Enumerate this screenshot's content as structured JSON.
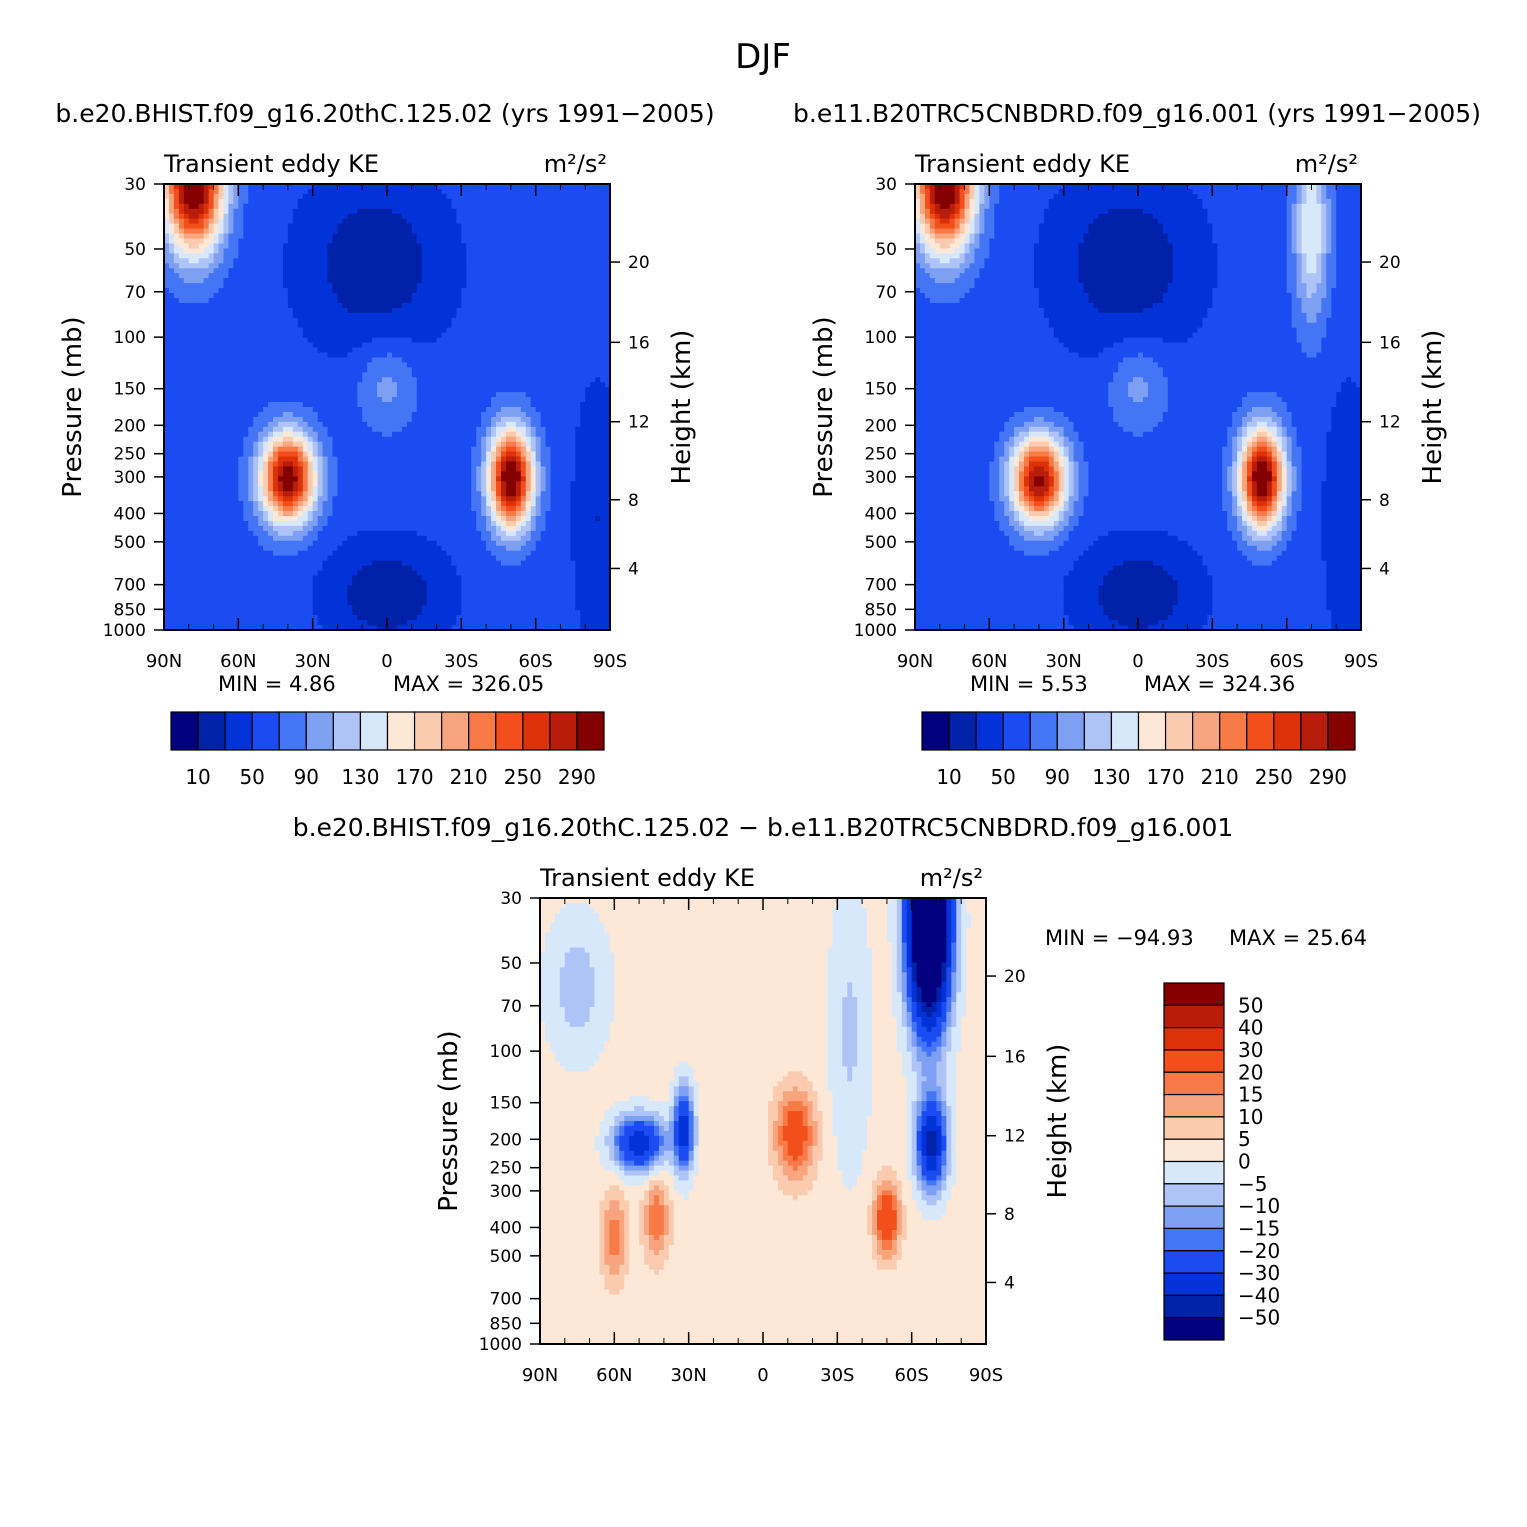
{
  "figure": {
    "title": "DJF"
  },
  "chart_data": [
    {
      "type": "heatmap",
      "id": "control",
      "case_title": "b.e20.BHIST.f09_g16.20thC.125.02 (yrs 1991−2005)",
      "left_label": "Transient eddy KE",
      "right_label": "m²/s²",
      "ylabel": "Pressure (mb)",
      "ylabel_right": "Height (km)",
      "x_ticks": [
        "90N",
        "60N",
        "30N",
        "0",
        "30S",
        "60S",
        "90S"
      ],
      "y_ticks": [
        "30",
        "50",
        "70",
        "100",
        "150",
        "200",
        "250",
        "300",
        "400",
        "500",
        "700",
        "850",
        "1000"
      ],
      "y_ticks_right": [
        "20",
        "16",
        "12",
        "8",
        "4"
      ],
      "min_text": "MIN =    4.86",
      "max_text": "MAX = 326.05",
      "levels": [
        10,
        30,
        50,
        70,
        90,
        110,
        130,
        150,
        170,
        190,
        210,
        230,
        250,
        270,
        290
      ],
      "colorbar_labels": [
        "10",
        "50",
        "90",
        "130",
        "170",
        "210",
        "250",
        "290"
      ],
      "colors": [
        "#02007f",
        "#0121a8",
        "#0332d9",
        "#1a4cf2",
        "#4475f4",
        "#7ea0f2",
        "#aec4f6",
        "#d7e8fb",
        "#fde8d7",
        "#fbcbaf",
        "#f7a57e",
        "#f87a47",
        "#f24f1c",
        "#dc3109",
        "#b81c0a",
        "#840000"
      ],
      "stats": {
        "min": 4.86,
        "max": 326.05
      }
    },
    {
      "type": "heatmap",
      "id": "test",
      "case_title": "b.e11.B20TRC5CNBDRD.f09_g16.001 (yrs 1991−2005)",
      "left_label": "Transient eddy KE",
      "right_label": "m²/s²",
      "ylabel": "Pressure (mb)",
      "ylabel_right": "Height (km)",
      "x_ticks": [
        "90N",
        "60N",
        "30N",
        "0",
        "30S",
        "60S",
        "90S"
      ],
      "y_ticks": [
        "30",
        "50",
        "70",
        "100",
        "150",
        "200",
        "250",
        "300",
        "400",
        "500",
        "700",
        "850",
        "1000"
      ],
      "y_ticks_right": [
        "20",
        "16",
        "12",
        "8",
        "4"
      ],
      "min_text": "MIN =    5.53",
      "max_text": "MAX = 324.36",
      "levels": [
        10,
        30,
        50,
        70,
        90,
        110,
        130,
        150,
        170,
        190,
        210,
        230,
        250,
        270,
        290
      ],
      "colorbar_labels": [
        "10",
        "50",
        "90",
        "130",
        "170",
        "210",
        "250",
        "290"
      ],
      "colors": [
        "#02007f",
        "#0121a8",
        "#0332d9",
        "#1a4cf2",
        "#4475f4",
        "#7ea0f2",
        "#aec4f6",
        "#d7e8fb",
        "#fde8d7",
        "#fbcbaf",
        "#f7a57e",
        "#f87a47",
        "#f24f1c",
        "#dc3109",
        "#b81c0a",
        "#840000"
      ],
      "stats": {
        "min": 5.53,
        "max": 324.36
      }
    },
    {
      "type": "heatmap",
      "id": "difference",
      "case_title": "b.e20.BHIST.f09_g16.20thC.125.02 − b.e11.B20TRC5CNBDRD.f09_g16.001",
      "left_label": "Transient eddy KE",
      "right_label": "m²/s²",
      "ylabel": "Pressure (mb)",
      "ylabel_right": "Height (km)",
      "x_ticks": [
        "90N",
        "60N",
        "30N",
        "0",
        "30S",
        "60S",
        "90S"
      ],
      "y_ticks": [
        "30",
        "50",
        "70",
        "100",
        "150",
        "200",
        "250",
        "300",
        "400",
        "500",
        "700",
        "850",
        "1000"
      ],
      "y_ticks_right": [
        "20",
        "16",
        "12",
        "8",
        "4"
      ],
      "min_text": "MIN = −94.93",
      "max_text": "MAX =   25.64",
      "levels": [
        -50,
        -40,
        -30,
        -20,
        -15,
        -10,
        -5,
        0,
        5,
        10,
        15,
        20,
        30,
        40,
        50
      ],
      "colorbar_labels": [
        "50",
        "40",
        "30",
        "20",
        "15",
        "10",
        "5",
        "0",
        "−5",
        "−10",
        "−15",
        "−20",
        "−30",
        "−40",
        "−50"
      ],
      "colors": [
        "#02007f",
        "#0121a8",
        "#0332d9",
        "#1a4cf2",
        "#4475f4",
        "#7ea0f2",
        "#aec4f6",
        "#d7e8fb",
        "#fde8d7",
        "#fbcbaf",
        "#f7a57e",
        "#f87a47",
        "#f24f1c",
        "#dc3109",
        "#b81c0a",
        "#840000"
      ],
      "stats": {
        "min": -94.93,
        "max": 25.64
      }
    }
  ]
}
